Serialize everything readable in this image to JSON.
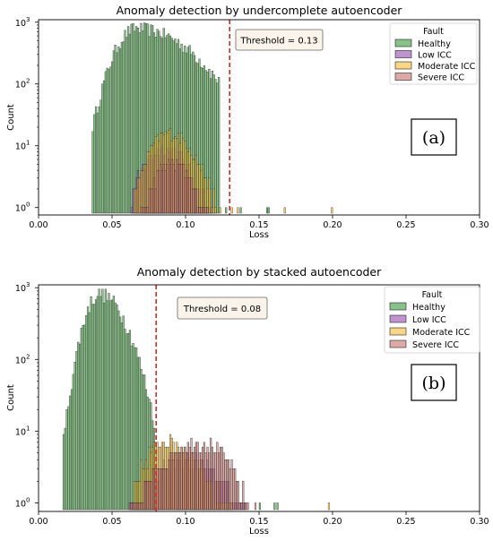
{
  "chart_data": [
    {
      "type": "histogram",
      "title": "Anomaly detection by undercomplete autoencoder",
      "xlabel": "Loss",
      "ylabel": "Count",
      "xlim": [
        0.0,
        0.3
      ],
      "xticks": [
        "0.00",
        "0.05",
        "0.10",
        "0.15",
        "0.20",
        "0.25",
        "0.30"
      ],
      "yscale": "log",
      "ylim_exponents": [
        0,
        3
      ],
      "yticks": [
        {
          "base": "10",
          "exp": "0"
        },
        {
          "base": "10",
          "exp": "1"
        },
        {
          "base": "10",
          "exp": "2"
        },
        {
          "base": "10",
          "exp": "3"
        }
      ],
      "threshold": {
        "value": 0.13,
        "label": "Threshold = 0.13",
        "color": "#d62728"
      },
      "panel_label": "(a)",
      "legend": {
        "title": "Fault",
        "position": "top-right"
      },
      "series": [
        {
          "name": "Healthy",
          "color": "#4aa24a",
          "shape": {
            "lo": 0.036,
            "hi": 0.122,
            "peak": 0.066,
            "peak_count": 800,
            "left_width": 0.011,
            "right_width": 0.028
          }
        },
        {
          "name": "Low ICC",
          "color": "#9b59b6",
          "shape": {
            "lo": 0.063,
            "hi": 0.118,
            "peak": 0.085,
            "peak_count": 9,
            "left_width": 0.012,
            "right_width": 0.014
          }
        },
        {
          "name": "Moderate ICC",
          "color": "#f5c040",
          "shape": {
            "lo": 0.065,
            "hi": 0.12,
            "peak": 0.088,
            "peak_count": 16,
            "left_width": 0.011,
            "right_width": 0.014
          }
        },
        {
          "name": "Severe ICC",
          "color": "#c97b76",
          "shape": {
            "lo": 0.068,
            "hi": 0.118,
            "peak": 0.09,
            "peak_count": 5,
            "left_width": 0.01,
            "right_width": 0.012
          }
        }
      ],
      "outliers": [
        {
          "x": 0.123,
          "series": "Moderate ICC"
        },
        {
          "x": 0.127,
          "series": "Healthy"
        },
        {
          "x": 0.131,
          "series": "Moderate ICC"
        },
        {
          "x": 0.135,
          "series": "Moderate ICC"
        },
        {
          "x": 0.137,
          "series": "Healthy"
        },
        {
          "x": 0.155,
          "series": "Healthy"
        },
        {
          "x": 0.156,
          "series": "Healthy"
        },
        {
          "x": 0.167,
          "series": "Moderate ICC"
        },
        {
          "x": 0.199,
          "series": "Moderate ICC"
        }
      ]
    },
    {
      "type": "histogram",
      "title": "Anomaly detection by stacked autoencoder",
      "xlabel": "Loss",
      "ylabel": "Count",
      "xlim": [
        0.0,
        0.3
      ],
      "xticks": [
        "0.00",
        "0.05",
        "0.10",
        "0.15",
        "0.20",
        "0.25",
        "0.30"
      ],
      "yscale": "log",
      "ylim_exponents": [
        0,
        3
      ],
      "yticks": [
        {
          "base": "10",
          "exp": "0"
        },
        {
          "base": "10",
          "exp": "1"
        },
        {
          "base": "10",
          "exp": "2"
        },
        {
          "base": "10",
          "exp": "3"
        }
      ],
      "threshold": {
        "value": 0.08,
        "label": "Threshold = 0.08",
        "color": "#d62728"
      },
      "panel_label": "(b)",
      "legend": {
        "title": "Fault",
        "position": "top-right"
      },
      "series": [
        {
          "name": "Healthy",
          "color": "#4aa24a",
          "shape": {
            "lo": 0.016,
            "hi": 0.078,
            "peak": 0.041,
            "peak_count": 820,
            "left_width": 0.008,
            "right_width": 0.013
          }
        },
        {
          "name": "Low ICC",
          "color": "#9b59b6",
          "shape": {
            "lo": 0.062,
            "hi": 0.14,
            "peak": 0.1,
            "peak_count": 4,
            "left_width": 0.02,
            "right_width": 0.02
          }
        },
        {
          "name": "Moderate ICC",
          "color": "#f5c040",
          "shape": {
            "lo": 0.065,
            "hi": 0.14,
            "peak": 0.085,
            "peak_count": 7,
            "left_width": 0.012,
            "right_width": 0.02
          }
        },
        {
          "name": "Severe ICC",
          "color": "#c97b76",
          "shape": {
            "lo": 0.062,
            "hi": 0.142,
            "peak": 0.11,
            "peak_count": 7,
            "left_width": 0.022,
            "right_width": 0.016
          }
        }
      ],
      "outliers": [
        {
          "x": 0.147,
          "series": "Severe ICC"
        },
        {
          "x": 0.15,
          "series": "Healthy"
        },
        {
          "x": 0.16,
          "series": "Healthy"
        },
        {
          "x": 0.162,
          "series": "Healthy"
        },
        {
          "x": 0.197,
          "series": "Moderate ICC"
        }
      ]
    }
  ]
}
